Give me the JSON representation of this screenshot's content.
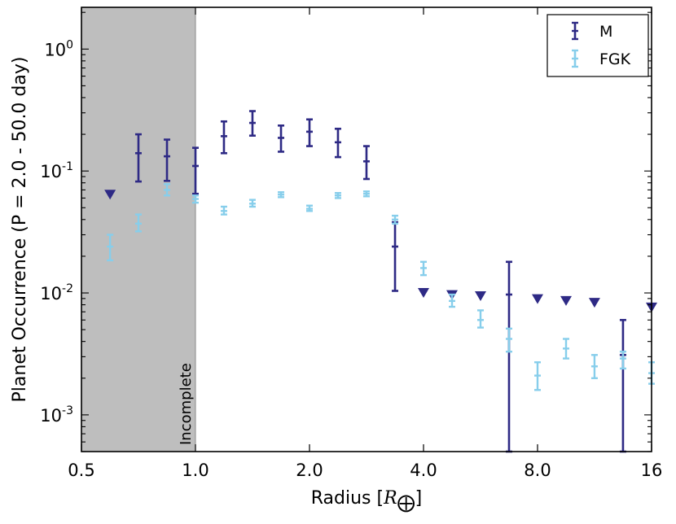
{
  "chart_data": {
    "type": "errorbar",
    "xscale": "log2",
    "yscale": "log10",
    "xlabel_prefix": "Radius [",
    "xlabel_symbol": "R",
    "xlabel_suffix": "]",
    "ylabel": "Planet Occurrence (P = 2.0 - 50.0 day)",
    "xlim": [
      0.5,
      16
    ],
    "ylim": [
      0.0005,
      2.2
    ],
    "x_ticks": [
      0.5,
      1.0,
      2.0,
      4.0,
      8.0,
      16
    ],
    "x_tick_labels": [
      "0.5",
      "1.0",
      "2.0",
      "4.0",
      "8.0",
      "16"
    ],
    "y_ticks": [
      0.001,
      0.01,
      0.1,
      1
    ],
    "y_tick_labels": [
      {
        "base": "10",
        "exp": "-3"
      },
      {
        "base": "10",
        "exp": "-2"
      },
      {
        "base": "10",
        "exp": "-1"
      },
      {
        "base": "10",
        "exp": "0"
      }
    ],
    "shaded_region": {
      "x_from": 0.5,
      "x_to": 1.0,
      "label": "Incomplete",
      "color": "#bebebe"
    },
    "legend": {
      "position": "upper right"
    },
    "series": [
      {
        "name": "M",
        "color": "#2e2a85",
        "points": [
          {
            "x": 0.707,
            "y": 0.14,
            "lo": 0.082,
            "hi": 0.2
          },
          {
            "x": 0.841,
            "y": 0.132,
            "lo": 0.083,
            "hi": 0.181
          },
          {
            "x": 1.0,
            "y": 0.11,
            "lo": 0.065,
            "hi": 0.155
          },
          {
            "x": 1.189,
            "y": 0.193,
            "lo": 0.14,
            "hi": 0.255
          },
          {
            "x": 1.414,
            "y": 0.248,
            "lo": 0.195,
            "hi": 0.31
          },
          {
            "x": 1.682,
            "y": 0.187,
            "lo": 0.144,
            "hi": 0.236
          },
          {
            "x": 2.0,
            "y": 0.21,
            "lo": 0.16,
            "hi": 0.265
          },
          {
            "x": 2.378,
            "y": 0.172,
            "lo": 0.13,
            "hi": 0.222
          },
          {
            "x": 2.828,
            "y": 0.12,
            "lo": 0.086,
            "hi": 0.16
          },
          {
            "x": 3.364,
            "y": 0.024,
            "lo": 0.0104,
            "hi": 0.038
          },
          {
            "x": 6.727,
            "y": 0.0097,
            "lo": 0.0005,
            "hi": 0.018
          },
          {
            "x": 13.45,
            "y": 0.0031,
            "lo": 0.0005,
            "hi": 0.006
          }
        ],
        "upper_limits": [
          {
            "x": 0.595,
            "y": 0.064
          },
          {
            "x": 4.0,
            "y": 0.01
          },
          {
            "x": 4.757,
            "y": 0.0096
          },
          {
            "x": 5.657,
            "y": 0.0094
          },
          {
            "x": 8.0,
            "y": 0.0089
          },
          {
            "x": 9.514,
            "y": 0.0086
          },
          {
            "x": 11.31,
            "y": 0.0083
          },
          {
            "x": 16.0,
            "y": 0.0076
          }
        ]
      },
      {
        "name": "FGK",
        "color": "#87ceeb",
        "points": [
          {
            "x": 0.595,
            "y": 0.024,
            "lo": 0.0185,
            "hi": 0.03
          },
          {
            "x": 0.707,
            "y": 0.037,
            "lo": 0.032,
            "hi": 0.044
          },
          {
            "x": 0.841,
            "y": 0.07,
            "lo": 0.063,
            "hi": 0.078
          },
          {
            "x": 1.0,
            "y": 0.059,
            "lo": 0.055,
            "hi": 0.063
          },
          {
            "x": 1.189,
            "y": 0.047,
            "lo": 0.044,
            "hi": 0.051
          },
          {
            "x": 1.414,
            "y": 0.054,
            "lo": 0.051,
            "hi": 0.058
          },
          {
            "x": 1.682,
            "y": 0.064,
            "lo": 0.061,
            "hi": 0.067
          },
          {
            "x": 2.0,
            "y": 0.049,
            "lo": 0.047,
            "hi": 0.052
          },
          {
            "x": 2.378,
            "y": 0.063,
            "lo": 0.06,
            "hi": 0.066
          },
          {
            "x": 2.828,
            "y": 0.065,
            "lo": 0.062,
            "hi": 0.068
          },
          {
            "x": 3.364,
            "y": 0.04,
            "lo": 0.037,
            "hi": 0.043
          },
          {
            "x": 4.0,
            "y": 0.016,
            "lo": 0.014,
            "hi": 0.018
          },
          {
            "x": 4.757,
            "y": 0.0086,
            "lo": 0.0077,
            "hi": 0.0097
          },
          {
            "x": 5.657,
            "y": 0.006,
            "lo": 0.0052,
            "hi": 0.0072
          },
          {
            "x": 6.727,
            "y": 0.0042,
            "lo": 0.0033,
            "hi": 0.0051
          },
          {
            "x": 8.0,
            "y": 0.0021,
            "lo": 0.0016,
            "hi": 0.0027
          },
          {
            "x": 9.514,
            "y": 0.0035,
            "lo": 0.0029,
            "hi": 0.0042
          },
          {
            "x": 11.31,
            "y": 0.0025,
            "lo": 0.002,
            "hi": 0.0031
          },
          {
            "x": 13.45,
            "y": 0.0029,
            "lo": 0.0024,
            "hi": 0.0033
          },
          {
            "x": 16.0,
            "y": 0.0022,
            "lo": 0.0018,
            "hi": 0.0027
          }
        ]
      }
    ]
  }
}
